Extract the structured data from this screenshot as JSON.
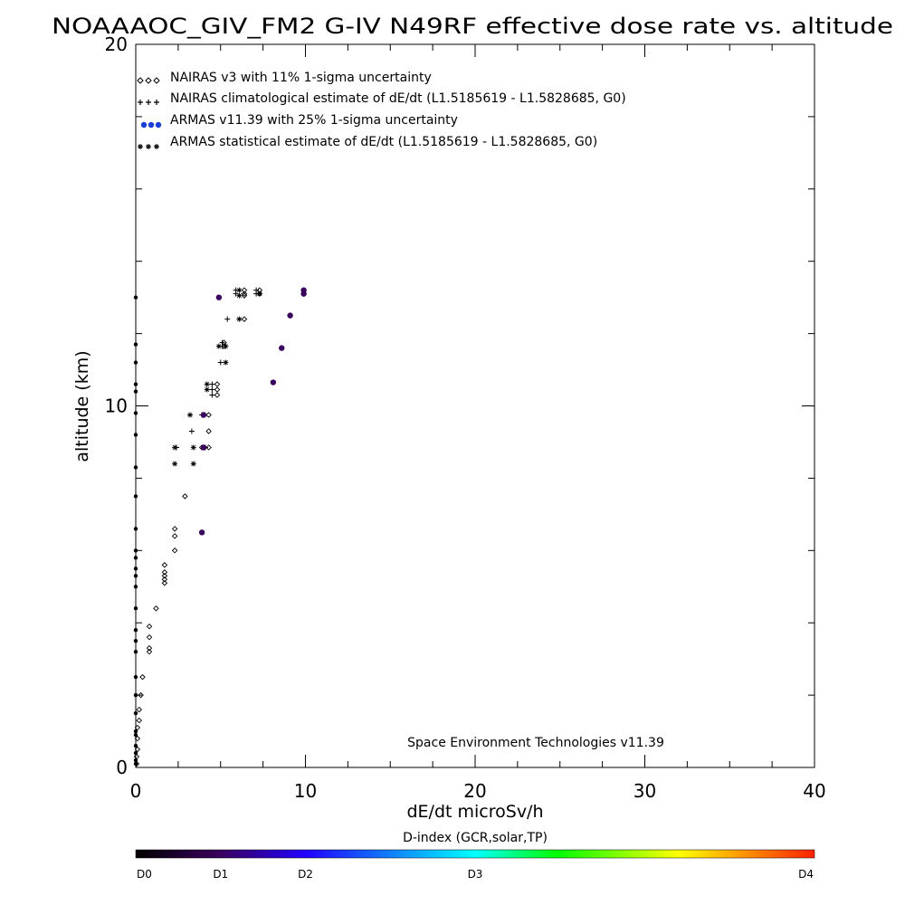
{
  "chart_data": {
    "type": "scatter",
    "title": "NOAAAOC_GIV_FM2 G-IV   N49RF  effective dose rate vs. altitude",
    "xlabel": "dE/dt microSv/h",
    "ylabel": "altitude (km)",
    "xlim": [
      0,
      40
    ],
    "ylim": [
      0,
      20
    ],
    "x_ticks": [
      "0",
      "10",
      "20",
      "30",
      "40"
    ],
    "y_ticks": [
      "0",
      "10",
      "20"
    ],
    "grid": false,
    "legend_position": "top-left",
    "legend": [
      "NAIRAS v3 with 11% 1-sigma uncertainty",
      "NAIRAS climatological estimate of dE/dt (L1.5185619 - L1.5828685, G0)",
      "ARMAS v11.39 with 25% 1-sigma uncertainty",
      "ARMAS statistical estimate of dE/dt (L1.5185619 - L1.5828685, G0)"
    ],
    "annotation": "Space Environment Technologies v11.39",
    "colorbar": {
      "label": "D-index (GCR,solar,TP)",
      "ticks": [
        "D0",
        "D1",
        "D2",
        "D3",
        "D4"
      ],
      "tick_fractions": [
        0,
        0.125,
        0.25,
        0.5,
        1.0
      ]
    },
    "series": [
      {
        "marker": "diamond",
        "points": [
          [
            0.05,
            0.1
          ],
          [
            0.05,
            0.3
          ],
          [
            0.1,
            0.5
          ],
          [
            0.1,
            0.8
          ],
          [
            0.1,
            1.1
          ],
          [
            0.2,
            1.3
          ],
          [
            0.2,
            1.6
          ],
          [
            0.3,
            2.0
          ],
          [
            0.4,
            2.5
          ],
          [
            0.8,
            3.2
          ],
          [
            0.8,
            3.3
          ],
          [
            0.8,
            3.6
          ],
          [
            0.8,
            3.9
          ],
          [
            1.2,
            4.4
          ],
          [
            1.7,
            5.1
          ],
          [
            1.7,
            5.2
          ],
          [
            1.7,
            5.3
          ],
          [
            1.7,
            5.4
          ],
          [
            1.7,
            5.6
          ],
          [
            2.3,
            6.0
          ],
          [
            2.3,
            6.4
          ],
          [
            2.3,
            6.6
          ],
          [
            2.9,
            7.5
          ],
          [
            3.9,
            8.85
          ],
          [
            4.3,
            8.85
          ],
          [
            4.3,
            9.3
          ],
          [
            4.3,
            9.75
          ],
          [
            4.8,
            10.3
          ],
          [
            4.8,
            10.45
          ],
          [
            4.8,
            10.6
          ],
          [
            5.2,
            11.65
          ],
          [
            5.2,
            11.75
          ],
          [
            6.4,
            12.4
          ],
          [
            6.4,
            13.05
          ],
          [
            6.4,
            13.1
          ],
          [
            6.4,
            13.2
          ],
          [
            7.3,
            13.1
          ],
          [
            7.3,
            13.2
          ],
          [
            9.9,
            13.1
          ],
          [
            9.9,
            13.2
          ]
        ]
      },
      {
        "marker": "plus",
        "points": [
          [
            2.4,
            8.85
          ],
          [
            3.3,
            9.3
          ],
          [
            3.9,
            9.75
          ],
          [
            4.1,
            8.85
          ],
          [
            4.5,
            10.3
          ],
          [
            4.5,
            10.45
          ],
          [
            4.5,
            10.6
          ],
          [
            5.0,
            11.2
          ],
          [
            5.1,
            11.65
          ],
          [
            5.1,
            11.75
          ],
          [
            5.4,
            12.4
          ],
          [
            5.9,
            13.1
          ],
          [
            5.9,
            13.2
          ],
          [
            7.1,
            13.1
          ],
          [
            7.1,
            13.2
          ]
        ]
      },
      {
        "marker": "star",
        "points": [
          [
            2.3,
            8.4
          ],
          [
            2.3,
            8.85
          ],
          [
            3.2,
            9.75
          ],
          [
            3.4,
            8.4
          ],
          [
            3.4,
            8.85
          ],
          [
            4.0,
            9.75
          ],
          [
            4.2,
            10.45
          ],
          [
            4.2,
            10.6
          ],
          [
            4.9,
            11.65
          ],
          [
            5.3,
            11.65
          ],
          [
            5.3,
            11.2
          ],
          [
            6.1,
            12.4
          ],
          [
            6.1,
            13.05
          ],
          [
            6.1,
            13.2
          ],
          [
            7.3,
            13.1
          ]
        ]
      },
      {
        "marker": "dot",
        "color": "#3a005e",
        "points": [
          [
            3.9,
            6.5
          ],
          [
            4.0,
            8.85
          ],
          [
            4.0,
            9.75
          ],
          [
            4.9,
            13.0
          ],
          [
            8.1,
            10.65
          ],
          [
            8.6,
            11.6
          ],
          [
            9.1,
            12.5
          ],
          [
            9.9,
            13.1
          ],
          [
            9.9,
            13.2
          ]
        ]
      },
      {
        "marker": "dot",
        "color": "#000000",
        "points": [
          [
            0.0,
            0.1
          ],
          [
            0.0,
            0.2
          ],
          [
            0.0,
            0.4
          ],
          [
            0.0,
            0.6
          ],
          [
            0.0,
            0.9
          ],
          [
            0.0,
            1.0
          ],
          [
            0.0,
            1.5
          ],
          [
            0.0,
            2.0
          ],
          [
            0.0,
            2.5
          ],
          [
            0.0,
            3.2
          ],
          [
            0.0,
            3.5
          ],
          [
            0.0,
            3.8
          ],
          [
            0.0,
            4.4
          ],
          [
            0.0,
            5.0
          ],
          [
            0.0,
            5.3
          ],
          [
            0.0,
            5.5
          ],
          [
            0.0,
            5.8
          ],
          [
            0.0,
            6.0
          ],
          [
            0.0,
            6.6
          ],
          [
            0.0,
            7.5
          ],
          [
            0.0,
            8.3
          ],
          [
            0.0,
            9.2
          ],
          [
            0.0,
            9.8
          ],
          [
            0.0,
            10.4
          ],
          [
            0.0,
            10.6
          ],
          [
            0.0,
            11.2
          ],
          [
            0.0,
            11.7
          ],
          [
            0.0,
            13.0
          ]
        ]
      }
    ]
  },
  "colors": {
    "legend_armas_dot": "#1a3fd6",
    "colorbar_stops": [
      "#000000",
      "#3a005e",
      "#2200ff",
      "#00ffff",
      "#00ff00",
      "#ffff00",
      "#ff2000"
    ]
  }
}
